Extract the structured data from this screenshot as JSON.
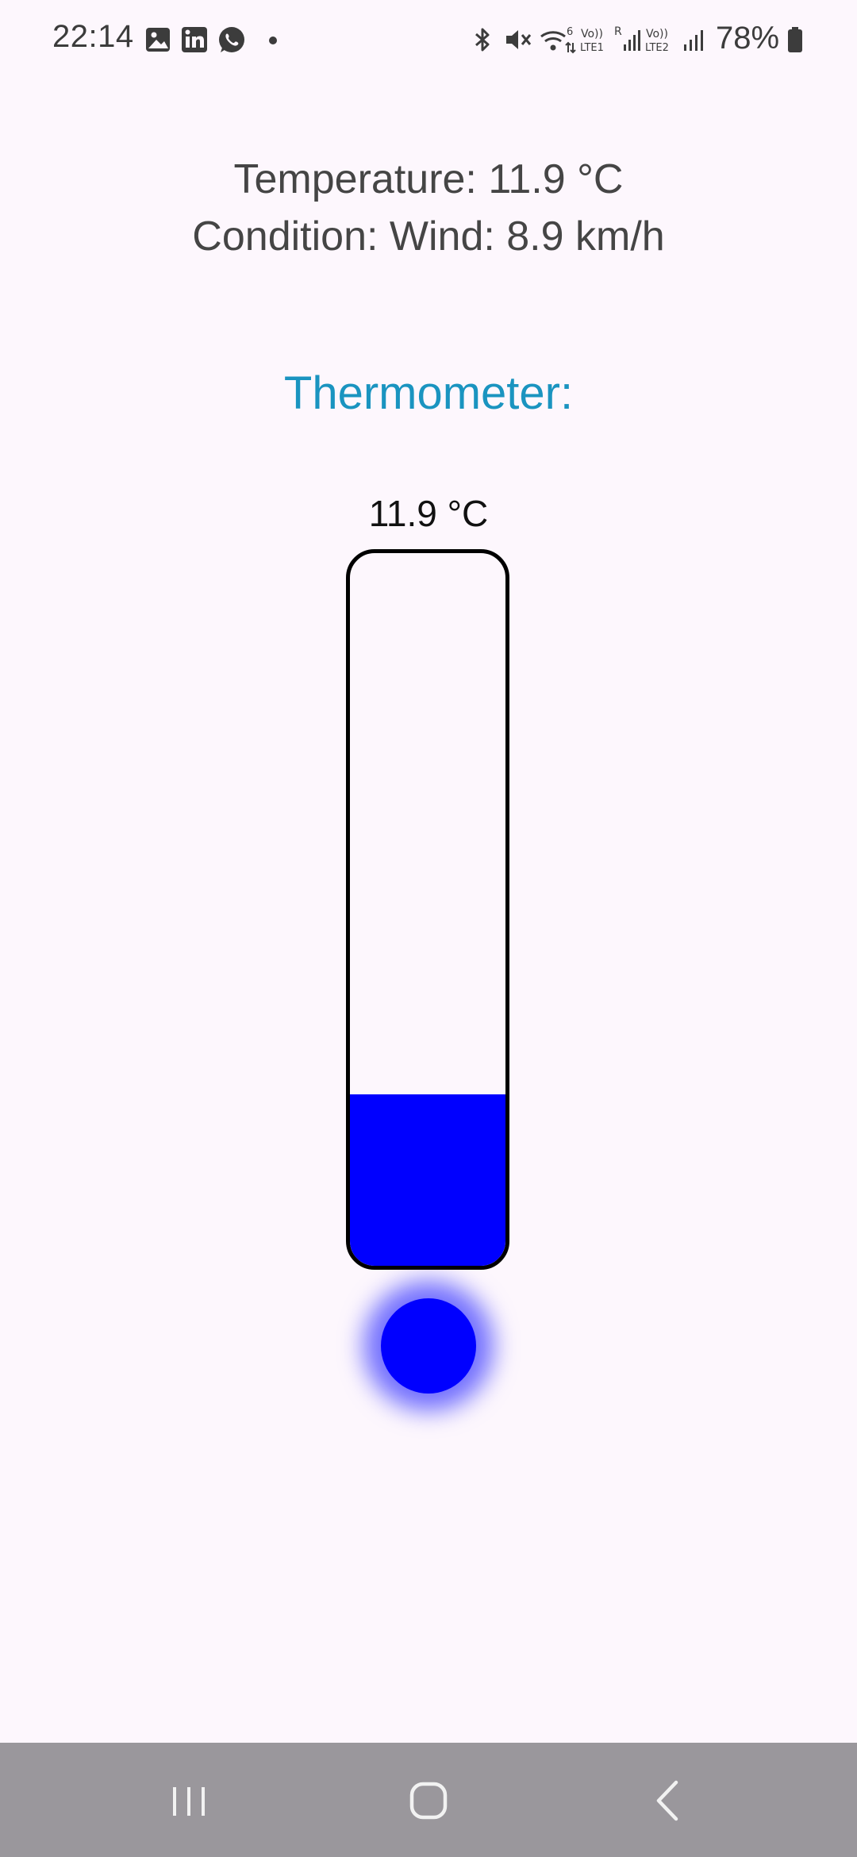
{
  "status_bar": {
    "time": "22:14",
    "battery_percent": "78%",
    "left_icons": [
      "gallery-icon",
      "linkedin-icon",
      "whatsapp-icon",
      "dot-icon"
    ],
    "right_icons": [
      "bluetooth-icon",
      "mute-icon",
      "wifi-6-icon",
      "volte-lte1-icon",
      "signal-roaming-icon",
      "volte-lte2-icon",
      "signal-icon",
      "battery-icon"
    ],
    "volte1_label": "Vo)) LTE1",
    "volte2_label": "Vo)) LTE2",
    "wifi_label": "6",
    "roaming_label": "R"
  },
  "weather": {
    "temperature_line": "Temperature: 11.9 °C",
    "condition_line": "Condition: Wind: 8.9 km/h"
  },
  "thermometer": {
    "heading": "Thermometer:",
    "reading": "11.9 °C",
    "fill_fraction": 0.24,
    "fill_color": "#0000ff",
    "heading_color": "#1a94c0"
  },
  "nav_bar": {
    "buttons": [
      "recent-apps-icon",
      "home-icon",
      "back-icon"
    ]
  }
}
